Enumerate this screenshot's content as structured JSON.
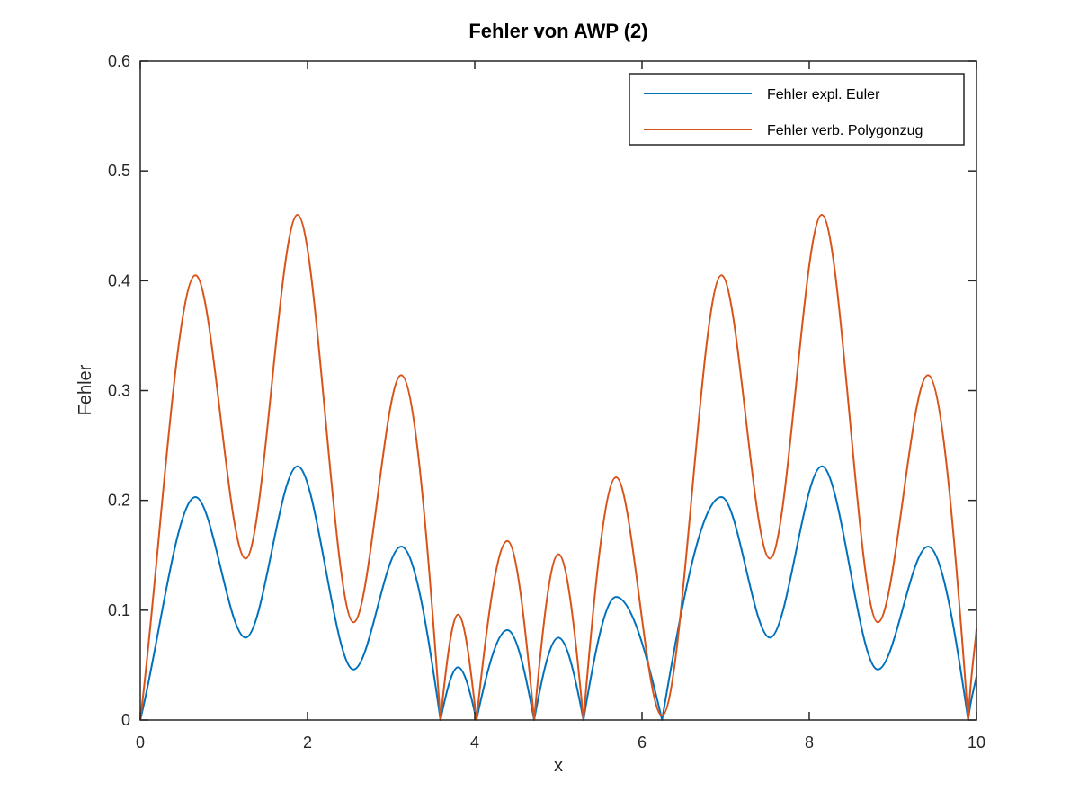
{
  "chart_data": {
    "type": "line",
    "title": "Fehler von AWP (2)",
    "xlabel": "x",
    "ylabel": "Fehler",
    "xlim": [
      0,
      10
    ],
    "ylim": [
      0,
      0.6
    ],
    "x_ticks": [
      "0",
      "2",
      "4",
      "6",
      "8",
      "10"
    ],
    "y_ticks": [
      "0",
      "0.1",
      "0.2",
      "0.3",
      "0.4",
      "0.5",
      "0.6"
    ],
    "legend_position": "top-right",
    "grid": false,
    "series": [
      {
        "name": "Fehler expl. Euler",
        "color": "#0072bd",
        "x": [
          0,
          0.66,
          1.26,
          1.88,
          2.55,
          3.12,
          3.59,
          3.8,
          4.02,
          4.39,
          4.71,
          5.0,
          5.3,
          5.69,
          6.24,
          6.95,
          7.53,
          8.15,
          8.82,
          9.42,
          9.9,
          10.0
        ],
        "y": [
          0,
          0.203,
          0.075,
          0.231,
          0.046,
          0.158,
          0.0,
          0.048,
          0.0,
          0.082,
          0.0,
          0.075,
          0.0,
          0.112,
          0.0,
          0.203,
          0.075,
          0.231,
          0.046,
          0.158,
          0.0,
          0.04
        ]
      },
      {
        "name": "Fehler verb. Polygonzug",
        "color": "#d95319",
        "x": [
          0,
          0.66,
          1.26,
          1.88,
          2.55,
          3.12,
          3.59,
          3.8,
          4.02,
          4.39,
          4.71,
          5.0,
          5.3,
          5.69,
          6.24,
          6.95,
          7.53,
          8.15,
          8.82,
          9.42,
          9.9,
          10.0
        ],
        "y": [
          0,
          0.405,
          0.147,
          0.46,
          0.089,
          0.314,
          0.0,
          0.096,
          0.0,
          0.163,
          0.0,
          0.151,
          0.0,
          0.221,
          0.004,
          0.405,
          0.147,
          0.46,
          0.089,
          0.314,
          0.0,
          0.083
        ]
      }
    ]
  }
}
